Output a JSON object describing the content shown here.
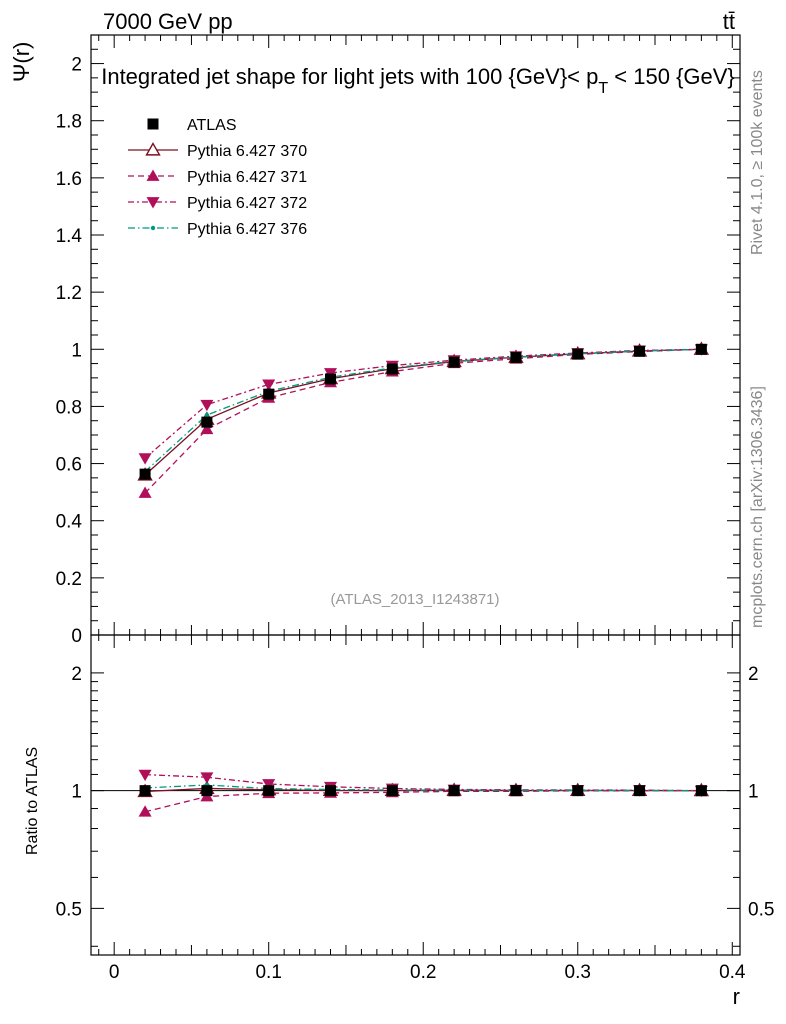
{
  "header": {
    "energy_label": "7000 GeV pp",
    "process_label": "tt̄",
    "side_label_rivet": "Rivet 4.1.0, ≥ 100k events",
    "side_label_mcplots": "mcplots.cern.ch [arXiv:1306.3436]"
  },
  "chart_data": {
    "type": "line",
    "title": "Integrated jet shape for light jets with 100 {GeV}< p_T < 150 {GeV}",
    "title_parts": {
      "prefix": "Integrated jet shape for light jets with 100 {GeV}< p",
      "subscript": "T",
      "suffix": " < 150 {GeV}"
    },
    "watermark": "(ATLAS_2013_I1243871)",
    "xlabel": "r",
    "ylabel": "Ψ(r)",
    "ratio_ylabel": "Ratio to ATLAS",
    "xlim": [
      -0.015,
      0.405
    ],
    "ylim": [
      0,
      2.1
    ],
    "ratio_ylim": [
      0.38,
      2.5
    ],
    "x_ticks": [
      0,
      0.1,
      0.2,
      0.3,
      0.4
    ],
    "x_tick_labels": [
      "0",
      "0.1",
      "0.2",
      "0.3",
      "0.4"
    ],
    "y_ticks": [
      0,
      0.2,
      0.4,
      0.6,
      0.8,
      1,
      1.2,
      1.4,
      1.6,
      1.8,
      2
    ],
    "y_tick_labels": [
      "0",
      "0.2",
      "0.4",
      "0.6",
      "0.8",
      "1",
      "1.2",
      "1.4",
      "1.6",
      "1.8",
      "2"
    ],
    "ratio_ticks": [
      0.5,
      1,
      2
    ],
    "ratio_tick_labels": [
      "0.5",
      "1",
      "2"
    ],
    "x": [
      0.02,
      0.06,
      0.1,
      0.14,
      0.18,
      0.22,
      0.26,
      0.3,
      0.34,
      0.38
    ],
    "legend_position": "top-left",
    "series": [
      {
        "name": "ATLAS",
        "color": "#000000",
        "marker": "square",
        "values": [
          0.563,
          0.745,
          0.843,
          0.896,
          0.931,
          0.955,
          0.971,
          0.983,
          0.993,
          1.0
        ],
        "ratio": [
          1,
          1,
          1,
          1,
          1,
          1,
          1,
          1,
          1,
          1
        ]
      },
      {
        "name": "Pythia 6.427 370",
        "color": "#7a1020",
        "marker": "triangle-open",
        "values": [
          0.56,
          0.755,
          0.847,
          0.897,
          0.932,
          0.957,
          0.972,
          0.984,
          0.994,
          1.0
        ],
        "ratio": [
          0.995,
          1.013,
          1.005,
          1.001,
          1.001,
          1.002,
          1.001,
          1.001,
          1.001,
          1.0
        ]
      },
      {
        "name": "Pythia 6.427 371",
        "color": "#b0105a",
        "marker": "triangle-up",
        "values": [
          0.497,
          0.72,
          0.83,
          0.884,
          0.922,
          0.951,
          0.967,
          0.982,
          0.992,
          1.0
        ],
        "ratio": [
          0.883,
          0.966,
          0.985,
          0.987,
          0.99,
          0.996,
          0.996,
          0.999,
          0.999,
          1.0
        ]
      },
      {
        "name": "Pythia 6.427 372",
        "color": "#b0105a",
        "marker": "triangle-down",
        "values": [
          0.619,
          0.806,
          0.877,
          0.917,
          0.943,
          0.962,
          0.976,
          0.987,
          0.996,
          1.0
        ],
        "ratio": [
          1.099,
          1.082,
          1.04,
          1.023,
          1.013,
          1.007,
          1.005,
          1.004,
          1.003,
          1.0
        ]
      },
      {
        "name": "Pythia 6.427 376",
        "color": "#009a80",
        "marker": "dot",
        "values": [
          0.572,
          0.77,
          0.853,
          0.902,
          0.935,
          0.958,
          0.973,
          0.985,
          0.994,
          1.0
        ],
        "ratio": [
          1.016,
          1.034,
          1.012,
          1.007,
          1.004,
          1.003,
          1.002,
          1.002,
          1.001,
          1.0
        ]
      }
    ]
  }
}
